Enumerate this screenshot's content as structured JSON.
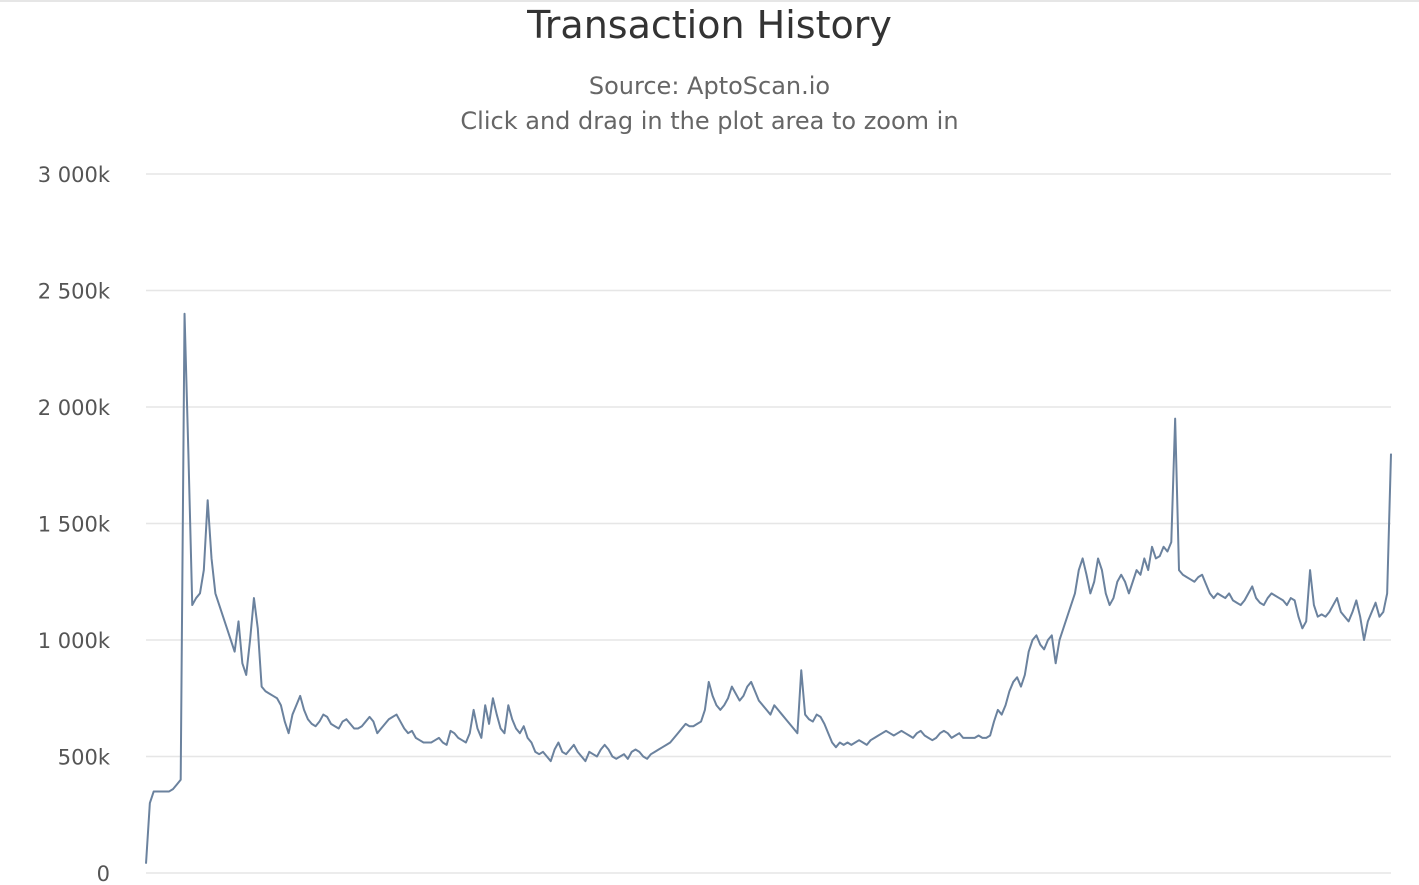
{
  "chart_data": {
    "type": "line",
    "title": "Transaction History",
    "subtitles": [
      "Source: AptoScan.io",
      "Click and drag in the plot area to zoom in"
    ],
    "xlabel": "",
    "ylabel": "",
    "ylim": [
      0,
      3000000
    ],
    "yticks": [
      {
        "value": 0,
        "label": "0"
      },
      {
        "value": 500000,
        "label": "500k"
      },
      {
        "value": 1000000,
        "label": "1 000k"
      },
      {
        "value": 1500000,
        "label": "1 500k"
      },
      {
        "value": 2000000,
        "label": "2 000k"
      },
      {
        "value": 2500000,
        "label": "2 500k"
      },
      {
        "value": 3000000,
        "label": "3 000k"
      }
    ],
    "grid": true,
    "series": [
      {
        "color": "#6b829e",
        "values": [
          40000,
          300000,
          350000,
          350000,
          350000,
          350000,
          350000,
          360000,
          380000,
          400000,
          2400000,
          1800000,
          1150000,
          1180000,
          1200000,
          1300000,
          1600000,
          1350000,
          1200000,
          1150000,
          1100000,
          1050000,
          1000000,
          950000,
          1080000,
          900000,
          850000,
          1000000,
          1180000,
          1050000,
          800000,
          780000,
          770000,
          760000,
          750000,
          720000,
          650000,
          600000,
          680000,
          720000,
          760000,
          700000,
          660000,
          640000,
          630000,
          650000,
          680000,
          670000,
          640000,
          630000,
          620000,
          650000,
          660000,
          640000,
          620000,
          620000,
          630000,
          650000,
          670000,
          650000,
          600000,
          620000,
          640000,
          660000,
          670000,
          680000,
          650000,
          620000,
          600000,
          610000,
          580000,
          570000,
          560000,
          560000,
          560000,
          570000,
          580000,
          560000,
          550000,
          610000,
          600000,
          580000,
          570000,
          560000,
          600000,
          700000,
          620000,
          580000,
          720000,
          640000,
          750000,
          680000,
          620000,
          600000,
          720000,
          660000,
          620000,
          600000,
          630000,
          580000,
          560000,
          520000,
          510000,
          520000,
          500000,
          480000,
          530000,
          560000,
          520000,
          510000,
          530000,
          550000,
          520000,
          500000,
          480000,
          520000,
          510000,
          500000,
          530000,
          550000,
          530000,
          500000,
          490000,
          500000,
          510000,
          490000,
          520000,
          530000,
          520000,
          500000,
          490000,
          510000,
          520000,
          530000,
          540000,
          550000,
          560000,
          580000,
          600000,
          620000,
          640000,
          630000,
          630000,
          640000,
          650000,
          700000,
          820000,
          760000,
          720000,
          700000,
          720000,
          750000,
          800000,
          770000,
          740000,
          760000,
          800000,
          820000,
          780000,
          740000,
          720000,
          700000,
          680000,
          720000,
          700000,
          680000,
          660000,
          640000,
          620000,
          600000,
          870000,
          680000,
          660000,
          650000,
          680000,
          670000,
          640000,
          600000,
          560000,
          540000,
          560000,
          550000,
          560000,
          550000,
          560000,
          570000,
          560000,
          550000,
          570000,
          580000,
          590000,
          600000,
          610000,
          600000,
          590000,
          600000,
          610000,
          600000,
          590000,
          580000,
          600000,
          610000,
          590000,
          580000,
          570000,
          580000,
          600000,
          610000,
          600000,
          580000,
          590000,
          600000,
          580000,
          580000,
          580000,
          580000,
          590000,
          580000,
          580000,
          590000,
          650000,
          700000,
          680000,
          720000,
          780000,
          820000,
          840000,
          800000,
          850000,
          950000,
          1000000,
          1020000,
          980000,
          960000,
          1000000,
          1020000,
          900000,
          1000000,
          1050000,
          1100000,
          1150000,
          1200000,
          1300000,
          1350000,
          1280000,
          1200000,
          1250000,
          1350000,
          1300000,
          1200000,
          1150000,
          1180000,
          1250000,
          1280000,
          1250000,
          1200000,
          1250000,
          1300000,
          1280000,
          1350000,
          1300000,
          1400000,
          1350000,
          1360000,
          1400000,
          1380000,
          1420000,
          1950000,
          1300000,
          1280000,
          1270000,
          1260000,
          1250000,
          1270000,
          1280000,
          1240000,
          1200000,
          1180000,
          1200000,
          1190000,
          1180000,
          1200000,
          1170000,
          1160000,
          1150000,
          1170000,
          1200000,
          1230000,
          1180000,
          1160000,
          1150000,
          1180000,
          1200000,
          1190000,
          1180000,
          1170000,
          1150000,
          1180000,
          1170000,
          1100000,
          1050000,
          1080000,
          1300000,
          1150000,
          1100000,
          1110000,
          1100000,
          1120000,
          1150000,
          1180000,
          1120000,
          1100000,
          1080000,
          1120000,
          1170000,
          1100000,
          1000000,
          1080000,
          1120000,
          1160000,
          1100000,
          1120000,
          1200000,
          1800000
        ]
      }
    ]
  }
}
